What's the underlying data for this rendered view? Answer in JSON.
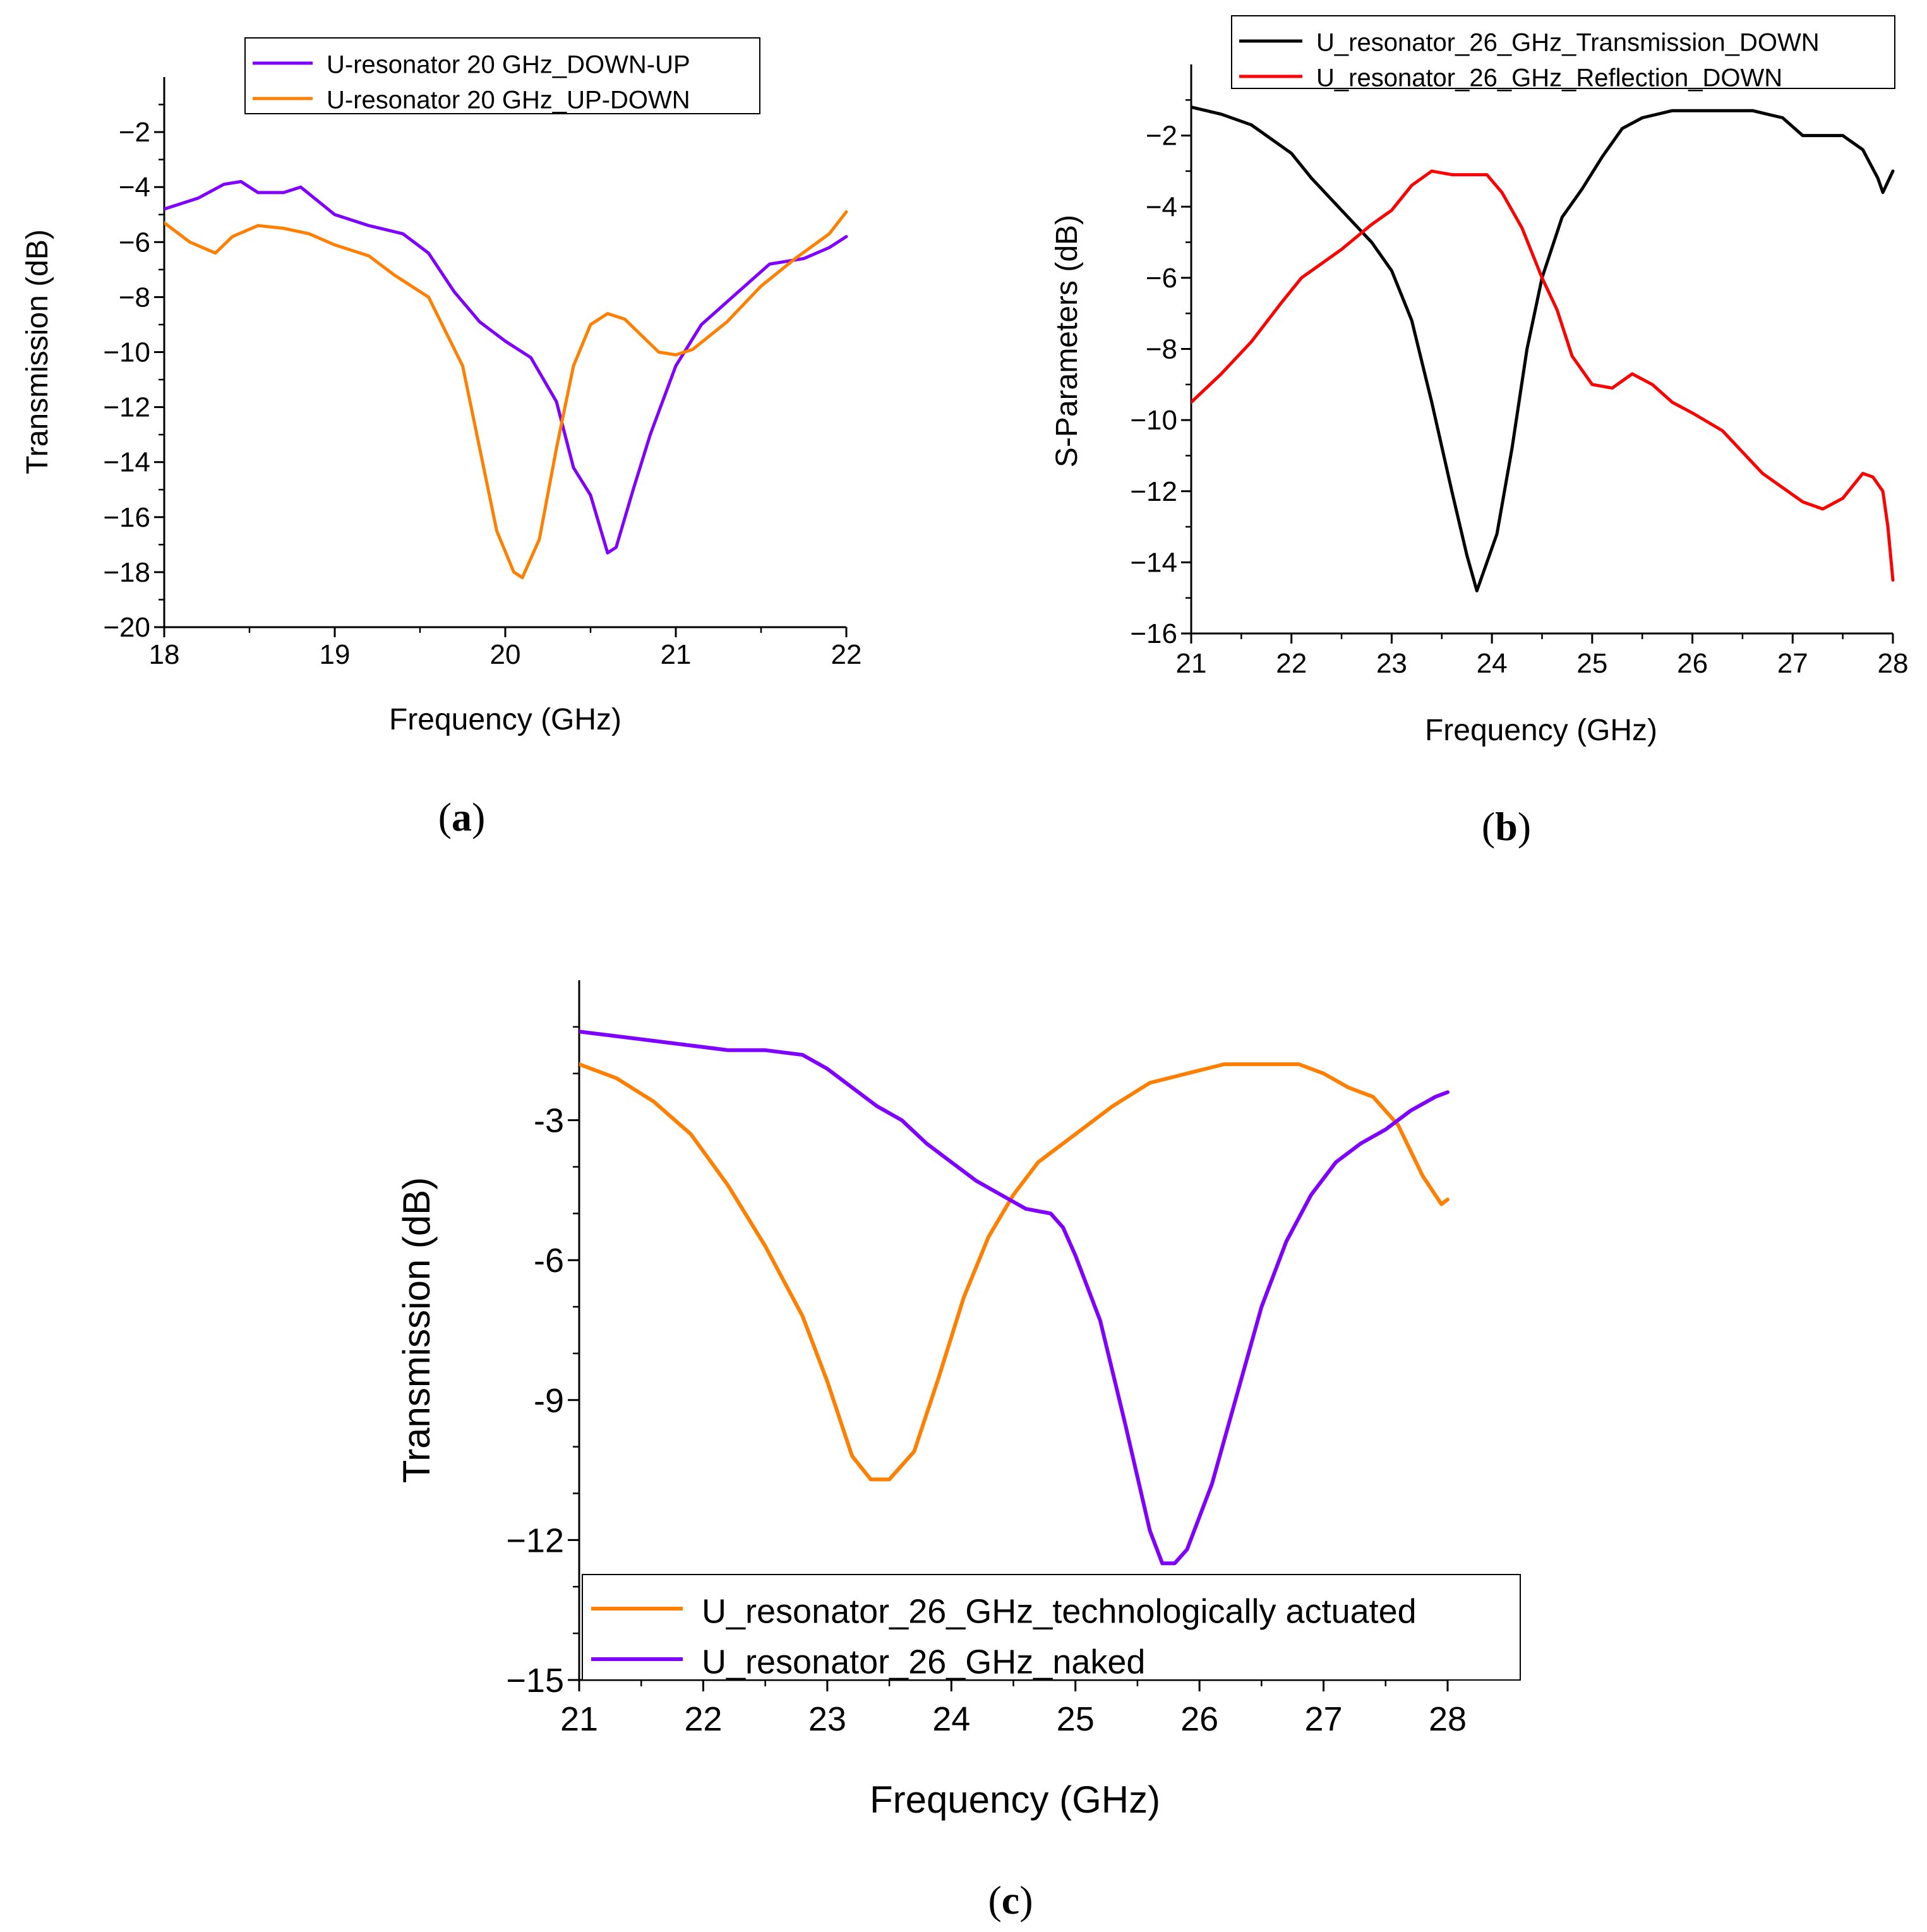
{
  "chart_data": [
    {
      "id": "a",
      "type": "line",
      "panel_label": {
        "open": "(",
        "letter": "a",
        "close": ")"
      },
      "xlabel": "Frequency (GHz)",
      "ylabel": "Transmission (dB)",
      "xlim": [
        18,
        22
      ],
      "ylim": [
        -20,
        0
      ],
      "xticks": [
        18,
        19,
        20,
        21,
        22
      ],
      "xtick_labels": [
        "18",
        "19",
        "20",
        "21",
        "22"
      ],
      "yticks": [
        -20,
        -18,
        -16,
        -14,
        -12,
        -10,
        -8,
        -6,
        -4,
        -2
      ],
      "ytick_labels": [
        "−20",
        "−18",
        "−16",
        "−14",
        "−12",
        "−10",
        "−8",
        "−6",
        "−4",
        "−2"
      ],
      "legend_position": "top-center",
      "series": [
        {
          "name": "U-resonator 20 GHz_DOWN-UP",
          "color": "#7F00FF",
          "x": [
            18.0,
            18.2,
            18.35,
            18.45,
            18.55,
            18.7,
            18.8,
            18.9,
            19.0,
            19.2,
            19.4,
            19.55,
            19.7,
            19.85,
            20.0,
            20.15,
            20.3,
            20.4,
            20.5,
            20.6,
            20.65,
            20.75,
            20.85,
            21.0,
            21.15,
            21.35,
            21.55,
            21.75,
            21.9,
            22.0
          ],
          "y": [
            -4.8,
            -4.4,
            -3.9,
            -3.8,
            -4.2,
            -4.2,
            -4.0,
            -4.5,
            -5.0,
            -5.4,
            -5.7,
            -6.4,
            -7.8,
            -8.9,
            -9.6,
            -10.2,
            -11.8,
            -14.2,
            -15.2,
            -17.3,
            -17.1,
            -15.0,
            -13.0,
            -10.5,
            -9.0,
            -7.9,
            -6.8,
            -6.6,
            -6.2,
            -5.8
          ]
        },
        {
          "name": "U-resonator 20 GHz_UP-DOWN",
          "color": "#FF8000",
          "x": [
            18.0,
            18.15,
            18.3,
            18.4,
            18.55,
            18.7,
            18.85,
            19.0,
            19.2,
            19.35,
            19.55,
            19.75,
            19.85,
            19.95,
            20.05,
            20.1,
            20.2,
            20.3,
            20.4,
            20.5,
            20.6,
            20.7,
            20.8,
            20.9,
            21.0,
            21.1,
            21.3,
            21.5,
            21.7,
            21.9,
            22.0
          ],
          "y": [
            -5.3,
            -6.0,
            -6.4,
            -5.8,
            -5.4,
            -5.5,
            -5.7,
            -6.1,
            -6.5,
            -7.2,
            -8.0,
            -10.5,
            -13.5,
            -16.5,
            -18.0,
            -18.2,
            -16.8,
            -13.5,
            -10.5,
            -9.0,
            -8.6,
            -8.8,
            -9.4,
            -10.0,
            -10.1,
            -9.9,
            -8.9,
            -7.6,
            -6.6,
            -5.7,
            -4.9
          ]
        }
      ]
    },
    {
      "id": "b",
      "type": "line",
      "panel_label": {
        "open": "(",
        "letter": "b",
        "close": ")"
      },
      "xlabel": "Frequency (GHz)",
      "ylabel": "S-Parameters (dB)",
      "xlim": [
        21,
        28
      ],
      "ylim": [
        -16,
        0
      ],
      "xticks": [
        21,
        22,
        23,
        24,
        25,
        26,
        27,
        28
      ],
      "xtick_labels": [
        "21",
        "22",
        "23",
        "24",
        "25",
        "26",
        "27",
        "28"
      ],
      "yticks": [
        -16,
        -14,
        -12,
        -10,
        -8,
        -6,
        -4,
        -2
      ],
      "ytick_labels": [
        "−16",
        "−14",
        "−12",
        "−10",
        "−8",
        "−6",
        "−4",
        "−2"
      ],
      "legend_position": "top-right",
      "series": [
        {
          "name": "U_resonator_26_GHz_Transmission_DOWN",
          "color": "#000000",
          "x": [
            21.0,
            21.3,
            21.6,
            22.0,
            22.2,
            22.5,
            22.8,
            23.0,
            23.2,
            23.4,
            23.6,
            23.75,
            23.85,
            23.95,
            24.05,
            24.2,
            24.35,
            24.5,
            24.7,
            24.9,
            25.1,
            25.3,
            25.5,
            25.8,
            26.0,
            26.3,
            26.6,
            26.9,
            27.1,
            27.3,
            27.5,
            27.7,
            27.85,
            27.9,
            28.0
          ],
          "y": [
            -1.2,
            -1.4,
            -1.7,
            -2.5,
            -3.2,
            -4.1,
            -5.0,
            -5.8,
            -7.2,
            -9.5,
            -12.0,
            -13.8,
            -14.8,
            -14.0,
            -13.2,
            -10.8,
            -8.0,
            -6.0,
            -4.3,
            -3.5,
            -2.6,
            -1.8,
            -1.5,
            -1.3,
            -1.3,
            -1.3,
            -1.3,
            -1.5,
            -2.0,
            -2.0,
            -2.0,
            -2.4,
            -3.2,
            -3.6,
            -3.0
          ]
        },
        {
          "name": "U_resonator_26_GHz_Reflection_DOWN",
          "color": "#FF0000",
          "x": [
            21.0,
            21.3,
            21.6,
            21.9,
            22.1,
            22.3,
            22.5,
            22.8,
            23.0,
            23.2,
            23.4,
            23.6,
            23.8,
            23.95,
            24.1,
            24.3,
            24.5,
            24.65,
            24.8,
            25.0,
            25.2,
            25.4,
            25.6,
            25.8,
            26.0,
            26.3,
            26.5,
            26.7,
            26.9,
            27.1,
            27.3,
            27.5,
            27.7,
            27.8,
            27.9,
            27.95,
            28.0
          ],
          "y": [
            -9.5,
            -8.7,
            -7.8,
            -6.7,
            -6.0,
            -5.6,
            -5.2,
            -4.5,
            -4.1,
            -3.4,
            -3.0,
            -3.1,
            -3.1,
            -3.1,
            -3.6,
            -4.6,
            -6.0,
            -6.9,
            -8.2,
            -9.0,
            -9.1,
            -8.7,
            -9.0,
            -9.5,
            -9.8,
            -10.3,
            -10.9,
            -11.5,
            -11.9,
            -12.3,
            -12.5,
            -12.2,
            -11.5,
            -11.6,
            -12.0,
            -13.0,
            -14.5
          ]
        }
      ]
    },
    {
      "id": "c",
      "type": "line",
      "panel_label": {
        "open": "(",
        "letter": "c",
        "close": ")"
      },
      "xlabel": "Frequency (GHz)",
      "ylabel": "Transmission (dB)",
      "xlim": [
        21,
        28
      ],
      "ylim": [
        -15,
        0
      ],
      "xticks": [
        21,
        22,
        23,
        24,
        25,
        26,
        27,
        28
      ],
      "xtick_labels": [
        "21",
        "22",
        "23",
        "24",
        "25",
        "26",
        "27",
        "28"
      ],
      "yticks": [
        -15,
        -12,
        -9,
        -6,
        -3
      ],
      "ytick_labels": [
        "−15",
        "−12",
        "-9",
        "-6",
        "-3"
      ],
      "legend_position": "bottom-right",
      "series": [
        {
          "name": "U_resonator_26_GHz_technologically actuated",
          "color": "#FF8000",
          "x": [
            21.0,
            21.3,
            21.6,
            21.9,
            22.2,
            22.5,
            22.8,
            23.0,
            23.2,
            23.35,
            23.5,
            23.7,
            23.9,
            24.1,
            24.3,
            24.5,
            24.7,
            25.0,
            25.3,
            25.6,
            25.9,
            26.2,
            26.5,
            26.8,
            27.0,
            27.2,
            27.4,
            27.6,
            27.8,
            27.95,
            28.0
          ],
          "y": [
            -1.8,
            -2.1,
            -2.6,
            -3.3,
            -4.4,
            -5.7,
            -7.2,
            -8.6,
            -10.2,
            -10.7,
            -10.7,
            -10.1,
            -8.5,
            -6.8,
            -5.5,
            -4.6,
            -3.9,
            -3.3,
            -2.7,
            -2.2,
            -2.0,
            -1.8,
            -1.8,
            -1.8,
            -2.0,
            -2.3,
            -2.5,
            -3.1,
            -4.2,
            -4.8,
            -4.7
          ]
        },
        {
          "name": "U_resonator_26_GHz_naked",
          "color": "#7F00FF",
          "x": [
            21.0,
            21.3,
            21.6,
            21.9,
            22.2,
            22.5,
            22.8,
            23.0,
            23.2,
            23.4,
            23.6,
            23.8,
            24.0,
            24.2,
            24.4,
            24.6,
            24.8,
            24.9,
            25.0,
            25.2,
            25.4,
            25.6,
            25.7,
            25.8,
            25.9,
            26.1,
            26.3,
            26.5,
            26.7,
            26.9,
            27.1,
            27.3,
            27.5,
            27.7,
            27.9,
            28.0
          ],
          "y": [
            -1.1,
            -1.2,
            -1.3,
            -1.4,
            -1.5,
            -1.5,
            -1.6,
            -1.9,
            -2.3,
            -2.7,
            -3.0,
            -3.5,
            -3.9,
            -4.3,
            -4.6,
            -4.9,
            -5.0,
            -5.3,
            -5.9,
            -7.3,
            -9.5,
            -11.8,
            -12.5,
            -12.5,
            -12.2,
            -10.8,
            -8.9,
            -7.0,
            -5.6,
            -4.6,
            -3.9,
            -3.5,
            -3.2,
            -2.8,
            -2.5,
            -2.4
          ]
        }
      ]
    }
  ]
}
